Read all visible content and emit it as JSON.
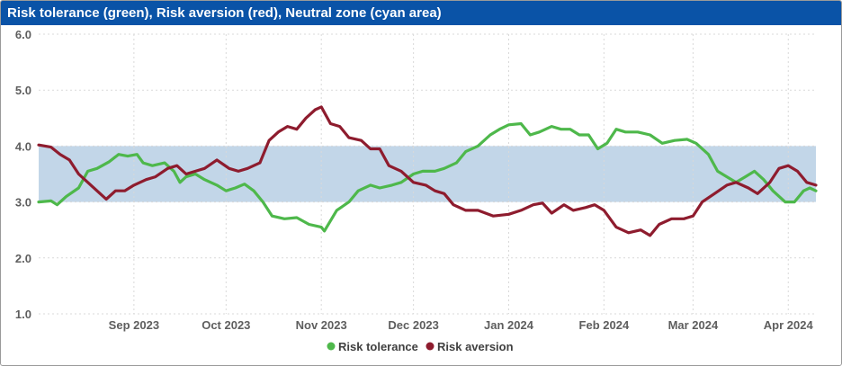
{
  "title": "Risk tolerance (green), Risk aversion (red), Neutral zone (cyan area)",
  "colors": {
    "title_bar": "#0a53a7",
    "green": "#4eb84b",
    "red": "#8e1c2e",
    "band": "#c2d6e8",
    "grid": "#d9d9d9"
  },
  "chart_data": {
    "type": "line",
    "title": "Risk tolerance (green), Risk aversion (red), Neutral zone (cyan area)",
    "ylim": [
      1.0,
      6.0
    ],
    "yticks": [
      "1.0",
      "2.0",
      "3.0",
      "4.0",
      "5.0",
      "6.0"
    ],
    "xlim": [
      "2023-08-01",
      "2024-04-10"
    ],
    "xticks": [
      {
        "label": "Sep 2023",
        "date": "2023-09-01"
      },
      {
        "label": "Oct 2023",
        "date": "2023-10-01"
      },
      {
        "label": "Nov 2023",
        "date": "2023-11-01"
      },
      {
        "label": "Dec 2023",
        "date": "2023-12-01"
      },
      {
        "label": "Jan 2024",
        "date": "2024-01-01"
      },
      {
        "label": "Feb 2024",
        "date": "2024-02-01"
      },
      {
        "label": "Mar 2024",
        "date": "2024-03-01"
      },
      {
        "label": "Apr 2024",
        "date": "2024-04-01"
      }
    ],
    "grid": true,
    "legend_position": "bottom-center",
    "neutral_zone": [
      3.0,
      4.0
    ],
    "series": [
      {
        "name": "Risk tolerance",
        "color": "#4eb84b",
        "points": [
          [
            "2023-08-01",
            3.0
          ],
          [
            "2023-08-05",
            3.02
          ],
          [
            "2023-08-07",
            2.95
          ],
          [
            "2023-08-10",
            3.1
          ],
          [
            "2023-08-14",
            3.25
          ],
          [
            "2023-08-17",
            3.55
          ],
          [
            "2023-08-20",
            3.6
          ],
          [
            "2023-08-24",
            3.72
          ],
          [
            "2023-08-27",
            3.85
          ],
          [
            "2023-08-30",
            3.82
          ],
          [
            "2023-09-02",
            3.85
          ],
          [
            "2023-09-04",
            3.7
          ],
          [
            "2023-09-07",
            3.65
          ],
          [
            "2023-09-11",
            3.7
          ],
          [
            "2023-09-14",
            3.55
          ],
          [
            "2023-09-16",
            3.35
          ],
          [
            "2023-09-18",
            3.45
          ],
          [
            "2023-09-21",
            3.5
          ],
          [
            "2023-09-24",
            3.4
          ],
          [
            "2023-09-28",
            3.3
          ],
          [
            "2023-10-01",
            3.2
          ],
          [
            "2023-10-04",
            3.25
          ],
          [
            "2023-10-07",
            3.32
          ],
          [
            "2023-10-10",
            3.2
          ],
          [
            "2023-10-13",
            3.0
          ],
          [
            "2023-10-16",
            2.75
          ],
          [
            "2023-10-20",
            2.7
          ],
          [
            "2023-10-24",
            2.72
          ],
          [
            "2023-10-28",
            2.6
          ],
          [
            "2023-11-01",
            2.55
          ],
          [
            "2023-11-02",
            2.48
          ],
          [
            "2023-11-06",
            2.85
          ],
          [
            "2023-11-10",
            3.0
          ],
          [
            "2023-11-13",
            3.2
          ],
          [
            "2023-11-17",
            3.3
          ],
          [
            "2023-11-20",
            3.25
          ],
          [
            "2023-11-24",
            3.3
          ],
          [
            "2023-11-27",
            3.35
          ],
          [
            "2023-12-01",
            3.5
          ],
          [
            "2023-12-04",
            3.55
          ],
          [
            "2023-12-08",
            3.55
          ],
          [
            "2023-12-11",
            3.6
          ],
          [
            "2023-12-15",
            3.7
          ],
          [
            "2023-12-18",
            3.9
          ],
          [
            "2023-12-22",
            4.0
          ],
          [
            "2023-12-26",
            4.2
          ],
          [
            "2023-12-29",
            4.3
          ],
          [
            "2024-01-01",
            4.38
          ],
          [
            "2024-01-05",
            4.4
          ],
          [
            "2024-01-08",
            4.2
          ],
          [
            "2024-01-11",
            4.25
          ],
          [
            "2024-01-15",
            4.35
          ],
          [
            "2024-01-18",
            4.3
          ],
          [
            "2024-01-21",
            4.3
          ],
          [
            "2024-01-24",
            4.2
          ],
          [
            "2024-01-27",
            4.2
          ],
          [
            "2024-01-30",
            3.95
          ],
          [
            "2024-02-02",
            4.05
          ],
          [
            "2024-02-05",
            4.3
          ],
          [
            "2024-02-08",
            4.25
          ],
          [
            "2024-02-12",
            4.25
          ],
          [
            "2024-02-16",
            4.2
          ],
          [
            "2024-02-20",
            4.05
          ],
          [
            "2024-02-24",
            4.1
          ],
          [
            "2024-02-28",
            4.12
          ],
          [
            "2024-03-02",
            4.05
          ],
          [
            "2024-03-06",
            3.85
          ],
          [
            "2024-03-09",
            3.55
          ],
          [
            "2024-03-12",
            3.45
          ],
          [
            "2024-03-15",
            3.35
          ],
          [
            "2024-03-18",
            3.45
          ],
          [
            "2024-03-21",
            3.55
          ],
          [
            "2024-03-24",
            3.4
          ],
          [
            "2024-03-27",
            3.2
          ],
          [
            "2024-03-31",
            3.0
          ],
          [
            "2024-04-03",
            3.0
          ],
          [
            "2024-04-06",
            3.2
          ],
          [
            "2024-04-08",
            3.25
          ],
          [
            "2024-04-10",
            3.2
          ]
        ]
      },
      {
        "name": "Risk aversion",
        "color": "#8e1c2e",
        "points": [
          [
            "2023-08-01",
            4.02
          ],
          [
            "2023-08-05",
            3.98
          ],
          [
            "2023-08-08",
            3.85
          ],
          [
            "2023-08-11",
            3.75
          ],
          [
            "2023-08-14",
            3.5
          ],
          [
            "2023-08-17",
            3.35
          ],
          [
            "2023-08-21",
            3.15
          ],
          [
            "2023-08-23",
            3.05
          ],
          [
            "2023-08-26",
            3.2
          ],
          [
            "2023-08-29",
            3.2
          ],
          [
            "2023-09-01",
            3.3
          ],
          [
            "2023-09-05",
            3.4
          ],
          [
            "2023-09-08",
            3.45
          ],
          [
            "2023-09-12",
            3.6
          ],
          [
            "2023-09-15",
            3.65
          ],
          [
            "2023-09-18",
            3.5
          ],
          [
            "2023-09-21",
            3.55
          ],
          [
            "2023-09-24",
            3.6
          ],
          [
            "2023-09-28",
            3.75
          ],
          [
            "2023-10-02",
            3.6
          ],
          [
            "2023-10-05",
            3.55
          ],
          [
            "2023-10-08",
            3.6
          ],
          [
            "2023-10-12",
            3.7
          ],
          [
            "2023-10-15",
            4.1
          ],
          [
            "2023-10-18",
            4.25
          ],
          [
            "2023-10-21",
            4.35
          ],
          [
            "2023-10-24",
            4.3
          ],
          [
            "2023-10-27",
            4.5
          ],
          [
            "2023-10-30",
            4.65
          ],
          [
            "2023-11-01",
            4.7
          ],
          [
            "2023-11-04",
            4.4
          ],
          [
            "2023-11-07",
            4.35
          ],
          [
            "2023-11-10",
            4.15
          ],
          [
            "2023-11-14",
            4.1
          ],
          [
            "2023-11-17",
            3.95
          ],
          [
            "2023-11-20",
            3.95
          ],
          [
            "2023-11-23",
            3.65
          ],
          [
            "2023-11-27",
            3.55
          ],
          [
            "2023-12-01",
            3.35
          ],
          [
            "2023-12-05",
            3.3
          ],
          [
            "2023-12-08",
            3.2
          ],
          [
            "2023-12-11",
            3.15
          ],
          [
            "2023-12-14",
            2.95
          ],
          [
            "2023-12-18",
            2.85
          ],
          [
            "2023-12-22",
            2.85
          ],
          [
            "2023-12-27",
            2.75
          ],
          [
            "2024-01-01",
            2.78
          ],
          [
            "2024-01-05",
            2.85
          ],
          [
            "2024-01-09",
            2.95
          ],
          [
            "2024-01-12",
            2.98
          ],
          [
            "2024-01-15",
            2.8
          ],
          [
            "2024-01-19",
            2.95
          ],
          [
            "2024-01-22",
            2.85
          ],
          [
            "2024-01-26",
            2.9
          ],
          [
            "2024-01-29",
            2.95
          ],
          [
            "2024-02-01",
            2.85
          ],
          [
            "2024-02-05",
            2.55
          ],
          [
            "2024-02-09",
            2.45
          ],
          [
            "2024-02-13",
            2.5
          ],
          [
            "2024-02-16",
            2.4
          ],
          [
            "2024-02-19",
            2.6
          ],
          [
            "2024-02-23",
            2.7
          ],
          [
            "2024-02-27",
            2.7
          ],
          [
            "2024-03-01",
            2.75
          ],
          [
            "2024-03-04",
            3.0
          ],
          [
            "2024-03-08",
            3.15
          ],
          [
            "2024-03-12",
            3.3
          ],
          [
            "2024-03-15",
            3.35
          ],
          [
            "2024-03-19",
            3.25
          ],
          [
            "2024-03-22",
            3.15
          ],
          [
            "2024-03-26",
            3.35
          ],
          [
            "2024-03-29",
            3.6
          ],
          [
            "2024-04-01",
            3.65
          ],
          [
            "2024-04-04",
            3.55
          ],
          [
            "2024-04-07",
            3.35
          ],
          [
            "2024-04-10",
            3.3
          ]
        ]
      }
    ]
  }
}
